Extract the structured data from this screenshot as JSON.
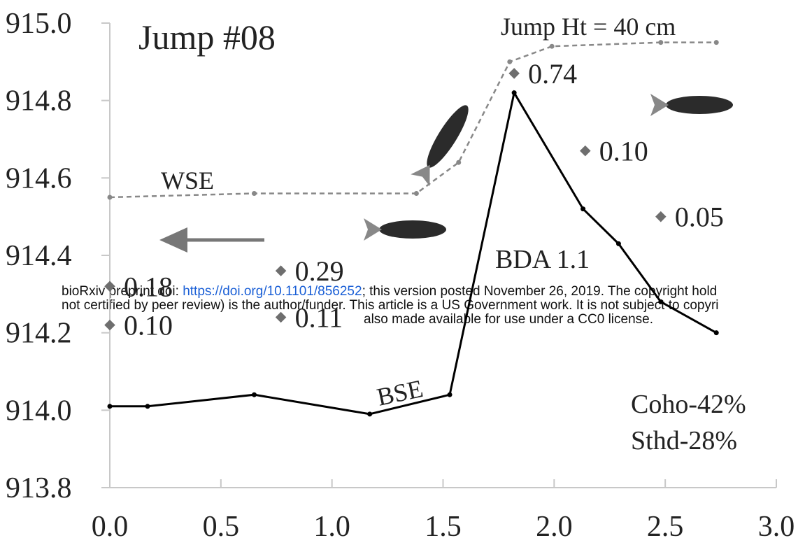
{
  "chart_data": {
    "type": "line",
    "title": "Jump #08",
    "annotations": [
      "Jump Ht = 40 cm",
      "BDA 1.1",
      "Coho-42%",
      "Sthd-28%"
    ],
    "series": [
      {
        "name": "BSE",
        "color": "#000000",
        "dashed": false,
        "x": [
          0,
          0.17,
          0.65,
          1.17,
          1.53,
          1.82,
          2.13,
          2.29,
          2.48,
          2.73
        ],
        "values": [
          914.01,
          914.01,
          914.04,
          913.99,
          914.04,
          914.82,
          914.52,
          914.43,
          914.28,
          914.2
        ]
      },
      {
        "name": "WSE",
        "color": "#888888",
        "dashed": true,
        "x": [
          0,
          0.65,
          1.38,
          1.57,
          1.8,
          1.99,
          2.48,
          2.73
        ],
        "values": [
          914.55,
          914.56,
          914.56,
          914.64,
          914.9,
          914.94,
          914.95,
          914.95
        ]
      }
    ],
    "points": {
      "color": "#6e6e6e",
      "x": [
        0,
        0,
        0.77,
        0.77,
        1.82,
        2.14,
        2.48
      ],
      "values": [
        914.32,
        914.22,
        914.36,
        914.24,
        914.87,
        914.67,
        914.5
      ],
      "labels": [
        "0.18",
        "0.10",
        "0.29",
        "0.11",
        "0.74",
        "0.10",
        "0.05"
      ]
    },
    "xlim": [
      0,
      3
    ],
    "ylim": [
      913.8,
      915
    ],
    "xticks": [
      {
        "value": 0,
        "label": "0.0"
      },
      0.5,
      {
        "value": 1,
        "label": "1.0"
      },
      1.5,
      {
        "value": 2,
        "label": "2.0"
      },
      2.5,
      {
        "value": 3,
        "label": "3.0"
      }
    ],
    "yticks": [
      913.8,
      {
        "value": 914,
        "label": "914.0"
      },
      914.2,
      914.4,
      914.6,
      914.8,
      {
        "value": 915,
        "label": "915.0"
      }
    ]
  },
  "watermark": {
    "line1": [
      "bioRxiv preprint doi: ",
      "https://doi.org/10.1101/856252",
      "; this version posted November 26, 2019. The copyright hold"
    ],
    "line2": "not certified by peer review) is the author/funder. This article is a US Government work. It is not subject to copyri",
    "line3": "also made available for use under a CC0 license."
  }
}
